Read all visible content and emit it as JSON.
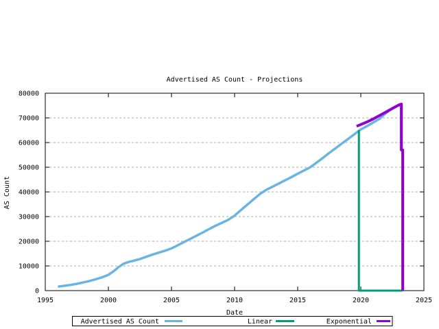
{
  "page": {
    "background": "#ffffff",
    "text_color": "#000000"
  },
  "chart_data": {
    "type": "line",
    "title": "Advertised AS Count - Projections",
    "xlabel": "Date",
    "ylabel": "AS Count",
    "xlim": [
      1995,
      2025
    ],
    "ylim": [
      0,
      80000
    ],
    "xticks": [
      "1995",
      "2000",
      "2005",
      "2010",
      "2015",
      "2020",
      "2025"
    ],
    "yticks": [
      "0",
      "10000",
      "20000",
      "30000",
      "40000",
      "50000",
      "60000",
      "70000",
      "80000"
    ],
    "grid": "horizontal-dashed-gray",
    "legend_position": "bottom-outside-box",
    "series": [
      {
        "name": "Advertised AS Count",
        "color": "#69b4e3",
        "width": 3.5,
        "points": [
          [
            1996.0,
            1600
          ],
          [
            1996.5,
            1950
          ],
          [
            1997.0,
            2300
          ],
          [
            1997.5,
            2750
          ],
          [
            1998.0,
            3300
          ],
          [
            1998.5,
            3900
          ],
          [
            1999.0,
            4600
          ],
          [
            1999.5,
            5400
          ],
          [
            2000.0,
            6400
          ],
          [
            2000.4,
            7800
          ],
          [
            2000.8,
            9500
          ],
          [
            2001.2,
            10900
          ],
          [
            2001.6,
            11600
          ],
          [
            2002.0,
            12100
          ],
          [
            2002.5,
            12800
          ],
          [
            2003.0,
            13700
          ],
          [
            2003.5,
            14600
          ],
          [
            2004.0,
            15400
          ],
          [
            2004.5,
            16200
          ],
          [
            2005.0,
            17100
          ],
          [
            2005.5,
            18400
          ],
          [
            2006.0,
            19700
          ],
          [
            2006.5,
            21000
          ],
          [
            2007.0,
            22300
          ],
          [
            2007.5,
            23600
          ],
          [
            2008.0,
            25000
          ],
          [
            2008.5,
            26300
          ],
          [
            2009.0,
            27500
          ],
          [
            2009.5,
            28700
          ],
          [
            2010.0,
            30400
          ],
          [
            2010.5,
            32600
          ],
          [
            2011.0,
            34800
          ],
          [
            2011.5,
            37000
          ],
          [
            2012.0,
            39100
          ],
          [
            2012.5,
            40800
          ],
          [
            2013.0,
            42100
          ],
          [
            2013.5,
            43400
          ],
          [
            2014.0,
            44700
          ],
          [
            2014.5,
            46000
          ],
          [
            2015.0,
            47400
          ],
          [
            2015.5,
            48700
          ],
          [
            2016.0,
            50000
          ],
          [
            2016.5,
            51900
          ],
          [
            2017.0,
            53800
          ],
          [
            2017.5,
            55800
          ],
          [
            2018.0,
            57700
          ],
          [
            2018.5,
            59600
          ],
          [
            2019.0,
            61500
          ],
          [
            2019.5,
            63400
          ],
          [
            2019.85,
            64800
          ],
          [
            2020.0,
            65300
          ],
          [
            2020.5,
            66700
          ],
          [
            2021.0,
            68200
          ],
          [
            2021.5,
            69700
          ],
          [
            2022.0,
            72000
          ],
          [
            2022.5,
            73900
          ],
          [
            2023.0,
            75100
          ],
          [
            2023.18,
            75400
          ],
          [
            2023.18,
            56800
          ]
        ]
      },
      {
        "name": "Linear",
        "color": "#009e73",
        "width": 3,
        "points": [
          [
            2019.85,
            65000
          ],
          [
            2019.85,
            0
          ],
          [
            2023.32,
            0
          ]
        ]
      },
      {
        "name": "Exponential",
        "color": "#9400d3",
        "width": 4,
        "points": [
          [
            2019.67,
            66600
          ],
          [
            2020.0,
            67300
          ],
          [
            2020.5,
            68400
          ],
          [
            2021.0,
            69600
          ],
          [
            2021.5,
            71000
          ],
          [
            2022.0,
            72400
          ],
          [
            2022.5,
            73800
          ],
          [
            2023.0,
            75200
          ],
          [
            2023.22,
            75600
          ],
          [
            2023.22,
            57000
          ],
          [
            2023.32,
            57000
          ],
          [
            2023.32,
            0
          ]
        ]
      }
    ]
  }
}
